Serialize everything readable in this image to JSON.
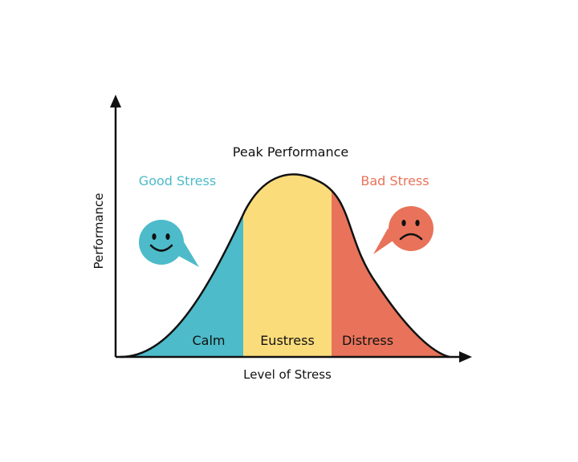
{
  "axes": {
    "x_label": "Level of Stress",
    "y_label": "Performance"
  },
  "peak_label": "Peak Performance",
  "callouts": {
    "good": {
      "label": "Good Stress",
      "color": "#4dbbc9",
      "icon": "smiley-face-icon"
    },
    "bad": {
      "label": "Bad Stress",
      "color": "#e8735a",
      "icon": "sad-face-icon"
    }
  },
  "zones": [
    {
      "key": "calm",
      "label": "Calm",
      "color": "#4dbbc9"
    },
    {
      "key": "eustress",
      "label": "Eustress",
      "color": "#fbdc7b"
    },
    {
      "key": "distress",
      "label": "Distress",
      "color": "#e8735a"
    }
  ]
}
